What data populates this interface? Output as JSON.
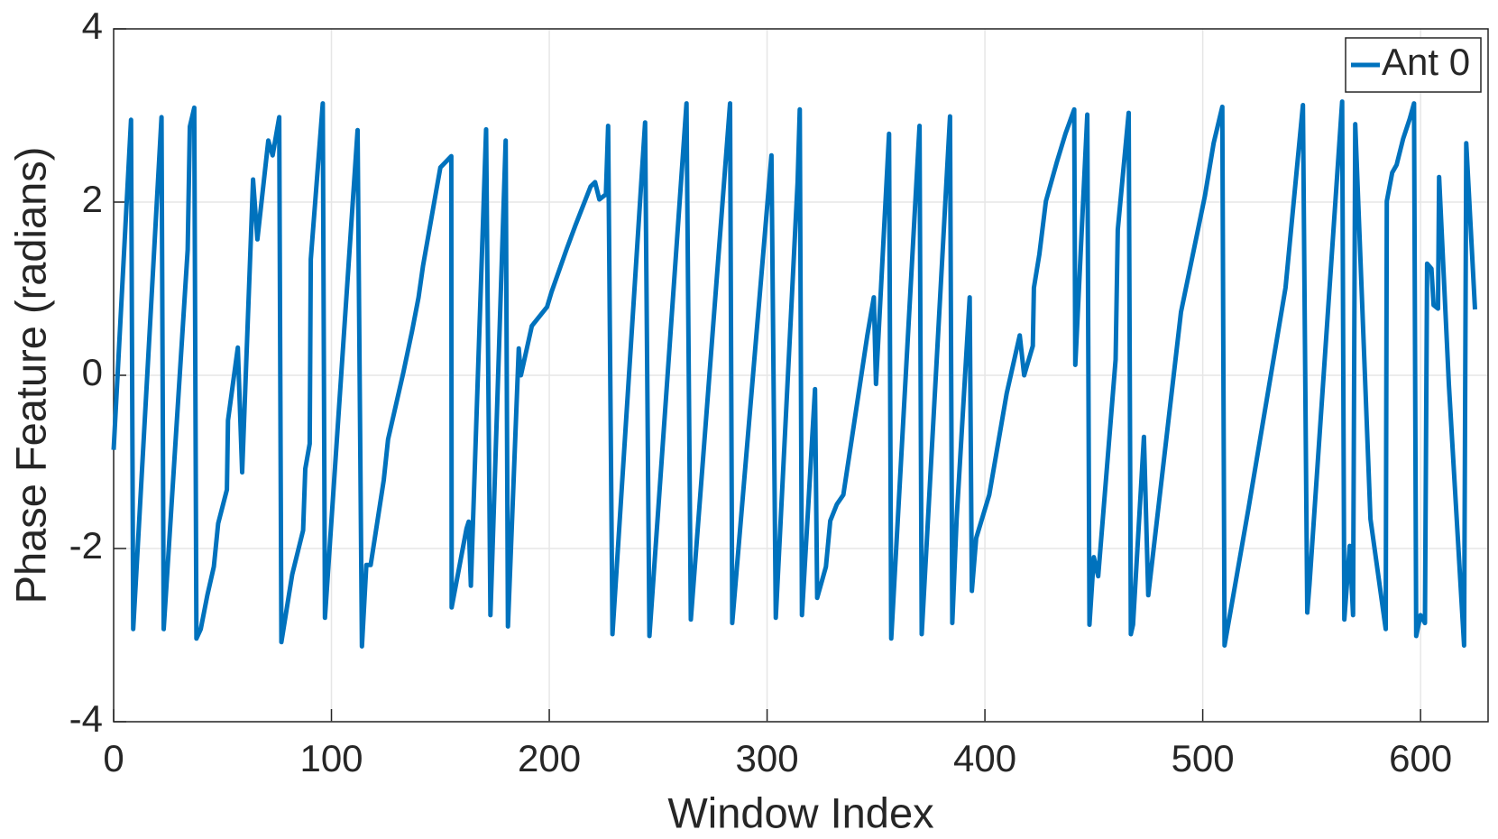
{
  "chart_data": {
    "type": "line",
    "xlabel": "Window Index",
    "ylabel": "Phase Feature (radians)",
    "xlim": [
      0,
      631
    ],
    "ylim": [
      -4,
      4
    ],
    "xticks": [
      0,
      100,
      200,
      300,
      400,
      500,
      600
    ],
    "yticks": [
      -4,
      -2,
      0,
      2,
      4
    ],
    "grid": true,
    "legend": "upper right",
    "x": [
      0,
      8,
      9,
      22,
      23,
      34,
      35,
      37,
      38,
      40,
      43,
      46,
      48,
      52,
      52.5,
      57,
      59,
      64,
      66,
      71,
      73,
      76,
      77,
      82,
      87,
      88,
      90,
      90.5,
      96,
      97,
      112,
      114,
      116,
      118,
      124,
      126,
      133,
      137,
      140,
      142,
      148,
      150,
      155,
      155.2,
      162,
      163,
      164,
      171,
      173,
      180,
      181,
      186,
      187,
      192,
      199,
      201,
      208,
      212,
      219,
      221,
      223,
      226,
      227,
      229,
      244,
      246,
      263,
      265,
      283,
      284,
      302,
      304,
      314,
      315,
      316,
      322,
      323,
      327,
      329,
      332,
      335,
      339,
      346,
      349,
      350,
      356,
      357,
      370,
      371,
      384,
      385,
      387,
      393,
      394,
      396,
      402,
      410,
      416,
      418,
      422,
      422.5,
      425,
      428,
      433,
      437,
      441,
      441.5,
      447,
      448,
      450,
      452,
      460,
      461,
      466,
      467,
      468,
      473,
      475,
      490,
      501,
      505,
      509,
      510,
      521,
      538,
      546,
      548,
      549,
      564,
      565,
      567.5,
      569,
      570,
      577,
      584,
      584.5,
      587,
      589,
      592,
      595,
      597,
      598,
      600,
      602,
      603,
      605,
      606,
      608,
      608.5,
      613,
      620,
      621,
      625
    ],
    "series": [
      {
        "name": "Ant 0",
        "color": "#0072bd",
        "values": [
          -0.86,
          2.95,
          -2.93,
          2.98,
          -2.93,
          1.45,
          2.87,
          3.09,
          -3.04,
          -2.93,
          -2.54,
          -2.21,
          -1.71,
          -1.32,
          -0.52,
          0.32,
          -1.12,
          2.26,
          1.57,
          2.71,
          2.54,
          2.98,
          -3.08,
          -2.3,
          -1.79,
          -1.08,
          -0.79,
          1.34,
          3.14,
          -2.8,
          2.83,
          -3.13,
          -2.19,
          -2.19,
          -1.21,
          -0.74,
          0.03,
          0.51,
          0.9,
          1.26,
          2.12,
          2.4,
          2.53,
          -2.68,
          -1.77,
          -1.69,
          -2.43,
          2.84,
          -2.77,
          2.71,
          -2.9,
          0.31,
          0,
          0.57,
          0.79,
          0.96,
          1.46,
          1.73,
          2.18,
          2.23,
          2.03,
          2.09,
          2.88,
          -2.99,
          2.92,
          -3.01,
          3.14,
          -2.82,
          3.14,
          -2.86,
          2.54,
          -2.8,
          2.23,
          3.07,
          -2.77,
          -0.16,
          -2.57,
          -2.21,
          -1.68,
          -1.49,
          -1.38,
          -0.71,
          0.46,
          0.9,
          -0.1,
          2.79,
          -3.04,
          2.88,
          -2.99,
          2.99,
          -2.86,
          -1.66,
          0.9,
          -2.49,
          -1.88,
          -1.38,
          -0.21,
          0.46,
          0,
          0.34,
          1.01,
          1.4,
          2.01,
          2.46,
          2.79,
          3.07,
          0.12,
          3.01,
          -2.88,
          -2.1,
          -2.32,
          0.18,
          1.68,
          3.03,
          -2.99,
          -2.88,
          -0.71,
          -2.54,
          0.73,
          2.07,
          2.68,
          3.1,
          -3.12,
          -1.54,
          1.01,
          3.12,
          -2.74,
          -2.41,
          3.16,
          -2.82,
          -1.97,
          -2.77,
          2.9,
          -1.66,
          -2.93,
          2.01,
          2.34,
          2.43,
          2.73,
          2.96,
          3.14,
          -3.01,
          -2.77,
          -2.86,
          1.29,
          1.23,
          0.81,
          0.77,
          2.29,
          -0.1,
          -3.12,
          2.68,
          0.76
        ]
      }
    ]
  }
}
